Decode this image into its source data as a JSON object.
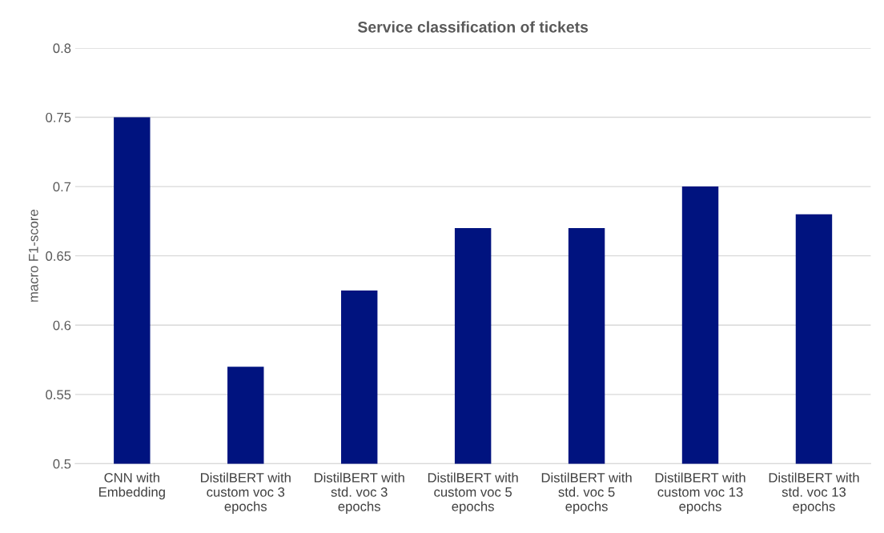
{
  "chart_data": {
    "type": "bar",
    "title": "Service classification of tickets",
    "ylabel": "macro F1-score",
    "categories": [
      "CNN with\nEmbedding",
      "DistilBERT with\ncustom voc 3\nepochs",
      "DistilBERT with\nstd. voc 3\nepochs",
      "DistilBERT with\ncustom voc 5\nepochs",
      "DistilBERT with\nstd. voc 5\nepochs",
      "DistilBERT with\ncustom voc 13\nepochs",
      "DistilBERT with\nstd. voc 13\nepochs"
    ],
    "values": [
      0.75,
      0.57,
      0.625,
      0.67,
      0.67,
      0.7,
      0.68
    ],
    "color": "#00137f",
    "ylim": [
      0.5,
      0.8
    ],
    "yticks": [
      {
        "value": 0.5,
        "label": "0.5"
      },
      {
        "value": 0.55,
        "label": "0.55"
      },
      {
        "value": 0.6,
        "label": "0.6"
      },
      {
        "value": 0.65,
        "label": "0.65"
      },
      {
        "value": 0.7,
        "label": "0.7"
      },
      {
        "value": 0.75,
        "label": "0.75"
      },
      {
        "value": 0.8,
        "label": "0.8"
      }
    ],
    "grid": "y"
  }
}
